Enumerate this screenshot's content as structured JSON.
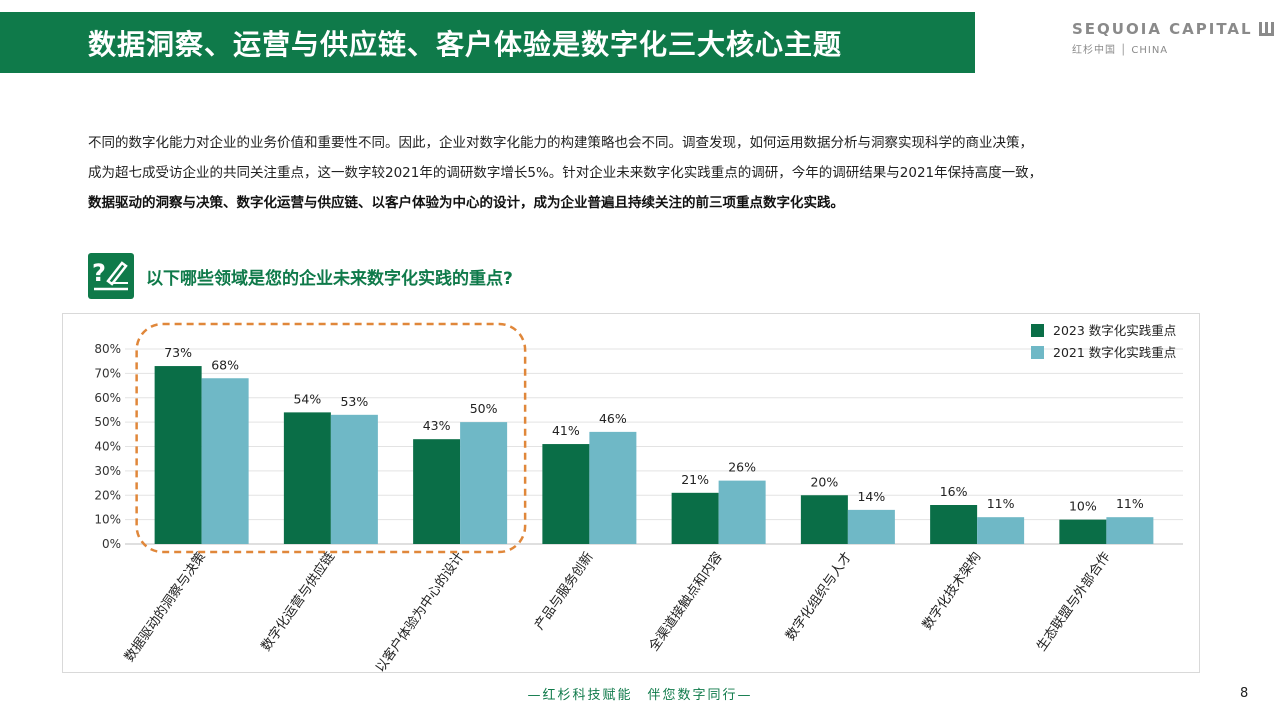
{
  "header": {
    "title": "数据洞察、运营与供应链、客户体验是数字化三大核心主题",
    "brand_name": "SEQUOIA CAPITAL",
    "brand_sub": "红杉中国 │ CHINA"
  },
  "intro": {
    "line1": "不同的数字化能力对企业的业务价值和重要性不同。因此，企业对数字化能力的构建策略也会不同。调查发现，如何运用数据分析与洞察实现科学的商业决策，",
    "line2": "成为超七成受访企业的共同关注重点，这一数字较2021年的调研数字增长5%。针对企业未来数字化实践重点的调研，今年的调研结果与2021年保持高度一致，",
    "line3_bold": "数据驱动的洞察与决策、数字化运营与供应链、以客户体验为中心的设计，成为企业普遍且持续关注的前三项重点数字化实践。"
  },
  "question": "以下哪些领域是您的企业未来数字化实践的重点?",
  "colors": {
    "brand_green": "#0f7a4a",
    "series_2023": "#0a6e47",
    "series_2021": "#6fb8c6",
    "highlight": "#e0873a"
  },
  "chart_data": {
    "type": "bar",
    "categories": [
      "数据驱动的洞察与决策",
      "数字化运营与供应链",
      "以客户体验为中心的设计",
      "产品与服务创新",
      "全渠道接触点和内容",
      "数字化组织与人才",
      "数字化技术架构",
      "生态联盟与外部合作"
    ],
    "series": [
      {
        "name": "2023 数字化实践重点",
        "values": [
          73,
          54,
          43,
          41,
          21,
          20,
          16,
          10
        ]
      },
      {
        "name": "2021 数字化实践重点",
        "values": [
          68,
          53,
          50,
          46,
          26,
          14,
          11,
          11
        ]
      }
    ],
    "value_suffix": "%",
    "yticks": [
      "0%",
      "10%",
      "20%",
      "30%",
      "40%",
      "50%",
      "60%",
      "70%",
      "80%"
    ],
    "ylim": [
      0,
      80
    ],
    "grid": true,
    "legend_position": "top-right",
    "highlighted_categories": [
      0,
      1,
      2
    ]
  },
  "footer": "—红杉科技赋能　伴您数字同行—",
  "page_number": "8"
}
